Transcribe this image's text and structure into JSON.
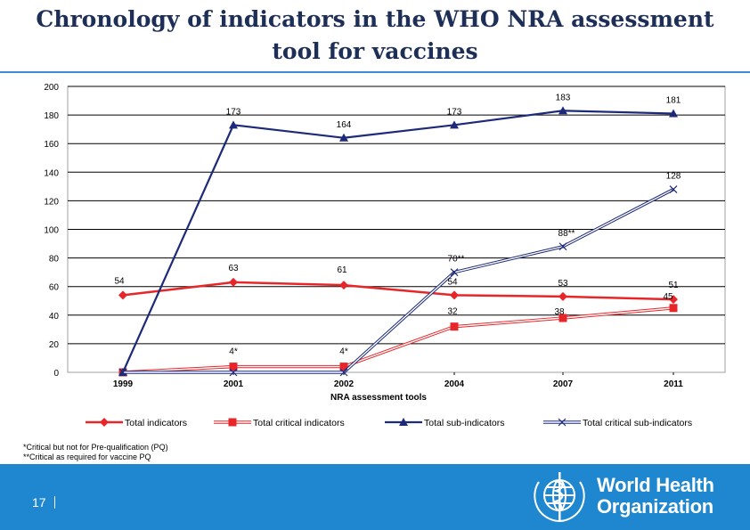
{
  "title": {
    "line1": "Chronology of indicators in the WHO NRA assessment",
    "line2": "tool for vaccines"
  },
  "chart_data": {
    "type": "line",
    "title": "",
    "xlabel": "NRA assessment tools",
    "ylabel": "",
    "categories": [
      "1999",
      "2001",
      "2002",
      "2004",
      "2007",
      "2011"
    ],
    "ylim": [
      0,
      200
    ],
    "yticks": [
      0,
      20,
      40,
      60,
      80,
      100,
      120,
      140,
      160,
      180,
      200
    ],
    "grid": true,
    "legend_position": "bottom",
    "series": [
      {
        "name": "Total indicators",
        "color": "#e8262a",
        "marker": "diamond",
        "values": [
          54,
          63,
          61,
          54,
          53,
          51
        ],
        "labels": [
          "54",
          "63",
          "61",
          "54",
          "53",
          "51"
        ]
      },
      {
        "name": "Total critical indicators",
        "color": "#e8262a",
        "marker": "square",
        "values": [
          0,
          4,
          4,
          32,
          38,
          45
        ],
        "labels": [
          "",
          "4*",
          "4*",
          "32",
          "38",
          "45"
        ]
      },
      {
        "name": "Total sub-indicators",
        "color": "#1d2a7a",
        "marker": "triangle",
        "values": [
          0,
          173,
          164,
          173,
          183,
          181
        ],
        "labels": [
          "",
          "173",
          "164",
          "173",
          "183",
          "181"
        ]
      },
      {
        "name": "Total critical sub-indicators",
        "color": "#1d2a7a",
        "marker": "x",
        "values": [
          0,
          0,
          0,
          70,
          88,
          128
        ],
        "labels": [
          "",
          "",
          "",
          "70**",
          "88**",
          "128"
        ]
      }
    ]
  },
  "footnotes": {
    "line1": "*Critical but not for Pre-qualification (PQ)",
    "line2": "**Critical as required for vaccine PQ"
  },
  "footer": {
    "page_number": "17",
    "org_line1": "World Health",
    "org_line2": "Organization",
    "bar_color": "#1f87cf"
  }
}
